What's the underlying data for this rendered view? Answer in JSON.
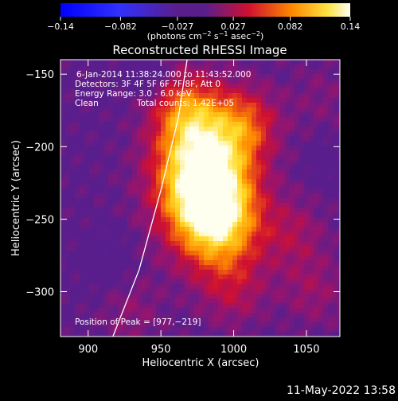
{
  "chart_data": {
    "type": "heatmap",
    "title": "Reconstructed RHESSI Image",
    "xlabel": "Heliocentric X (arcsec)",
    "ylabel": "Heliocentric Y (arcsec)",
    "xlim": [
      881,
      1073
    ],
    "ylim": [
      -331,
      -140
    ],
    "x_ticks": [
      900,
      950,
      1000,
      1050
    ],
    "y_ticks": [
      -150,
      -200,
      -250,
      -300
    ],
    "colorbar": {
      "min": -0.14,
      "max": 0.14,
      "tick_values": [
        -0.14,
        -0.082,
        -0.027,
        0.027,
        0.082,
        0.14
      ],
      "tick_labels": [
        "−0.14",
        "−0.082",
        "−0.027",
        "0.027",
        "0.082",
        "0.14"
      ],
      "unit_parts": [
        "(photons cm",
        "−2",
        " s",
        "−1",
        " asec",
        "−2",
        ")"
      ]
    },
    "annotations": {
      "time_range": "6-Jan-2014 11:38:24.000 to 11:43:52.000",
      "detectors": "Detectors: 3F 4F 5F 6F 7F 8F, Att 0",
      "energy_range": "Energy Range: 3.0 - 6.0 keV",
      "algorithm": "Clean",
      "total_counts": "Total counts: 1.42E+05",
      "peak": "Position of Peak = [977,−219]"
    },
    "peak_position": [
      977,
      -219
    ],
    "sources": [
      {
        "x": 977,
        "y": -219,
        "value": 0.14
      },
      {
        "x": 990,
        "y": -250,
        "value": 0.1
      },
      {
        "x": 1008,
        "y": -185,
        "value": 0.06
      },
      {
        "x": 968,
        "y": -175,
        "value": 0.06
      },
      {
        "x": 1040,
        "y": -260,
        "value": 0.03
      },
      {
        "x": 1055,
        "y": -300,
        "value": 0.025
      },
      {
        "x": 1000,
        "y": -300,
        "value": 0.03
      },
      {
        "x": 930,
        "y": -315,
        "value": 0.02
      },
      {
        "x": 1060,
        "y": -165,
        "value": 0.015
      }
    ],
    "limb_curve": [
      [
        917,
        -331
      ],
      [
        935,
        -285
      ],
      [
        950,
        -230
      ],
      [
        962,
        -180
      ],
      [
        968,
        -140
      ]
    ],
    "colors": {
      "background": "#000000",
      "neutral": "#5a1e8c",
      "low": "#0050ff",
      "mid": "#d01030",
      "high": "#ff8a00",
      "max": "#fffff0"
    }
  },
  "footer": {
    "timestamp": "11-May-2022 13:58"
  }
}
